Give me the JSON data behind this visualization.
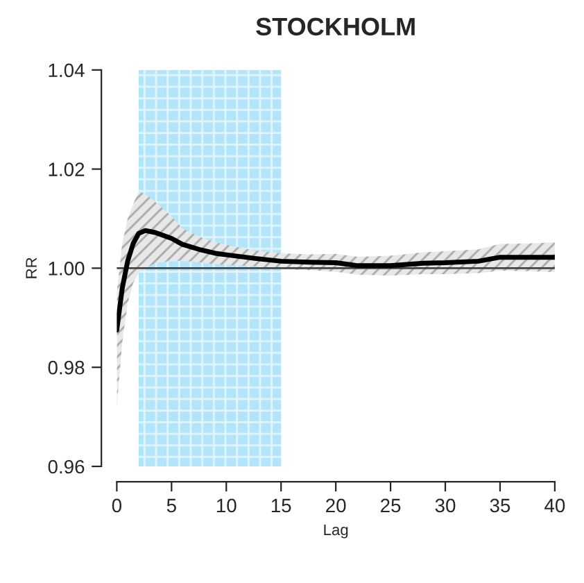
{
  "chart_data": {
    "type": "line",
    "title": "STOCKHOLM",
    "xlabel": "Lag",
    "ylabel": "RR",
    "x": [
      0,
      0.5,
      1,
      1.5,
      2,
      2.6,
      3.5,
      5,
      6,
      7.5,
      9,
      10,
      12.5,
      15,
      17.5,
      20,
      22,
      25,
      28,
      30,
      33,
      35,
      37.5,
      40
    ],
    "series": [
      {
        "color": "#000000",
        "values": [
          0.9875,
          0.996,
          1.0015,
          1.005,
          1.007,
          1.0076,
          1.0072,
          1.006,
          1.0048,
          1.0038,
          1.003,
          1.0027,
          1.002,
          1.0014,
          1.0012,
          1.0011,
          1.0005,
          1.0005,
          1.001,
          1.0011,
          1.0014,
          1.0022,
          1.0022,
          1.0022
        ],
        "lower": [
          0.972,
          0.985,
          0.993,
          0.997,
          0.999,
          1.0,
          1.001,
          1.0015,
          1.0015,
          1.0012,
          1.0008,
          1.0007,
          1.0004,
          0.9998,
          0.9996,
          0.9993,
          0.9987,
          0.9985,
          0.9988,
          0.9988,
          0.999,
          0.9995,
          0.9994,
          0.9992
        ],
        "upper": [
          0.995,
          1.005,
          1.01,
          1.013,
          1.0154,
          1.015,
          1.0134,
          1.0105,
          1.008,
          1.0064,
          1.0052,
          1.0047,
          1.0036,
          1.003,
          1.0028,
          1.0029,
          1.0023,
          1.0025,
          1.0032,
          1.0034,
          1.0038,
          1.0049,
          1.005,
          1.0052
        ]
      }
    ],
    "bands": [
      {
        "axis": "x",
        "from": 2,
        "to": 15,
        "color": "#7fd4f5"
      }
    ],
    "ref_lines": [
      {
        "axis": "y",
        "value": 1.0,
        "color": "#444444"
      }
    ],
    "xlim": [
      0,
      40
    ],
    "ylim": [
      0.96,
      1.04
    ],
    "xticks": [
      0,
      5,
      10,
      15,
      20,
      25,
      30,
      35,
      40
    ],
    "yticks": [
      {
        "value": 0.96,
        "label": "0.96"
      },
      {
        "value": 0.98,
        "label": "0.98"
      },
      {
        "value": 1.0,
        "label": "1.00"
      },
      {
        "value": 1.02,
        "label": "1.02"
      },
      {
        "value": 1.04,
        "label": "1.04"
      }
    ],
    "grid": false,
    "legend": false
  }
}
